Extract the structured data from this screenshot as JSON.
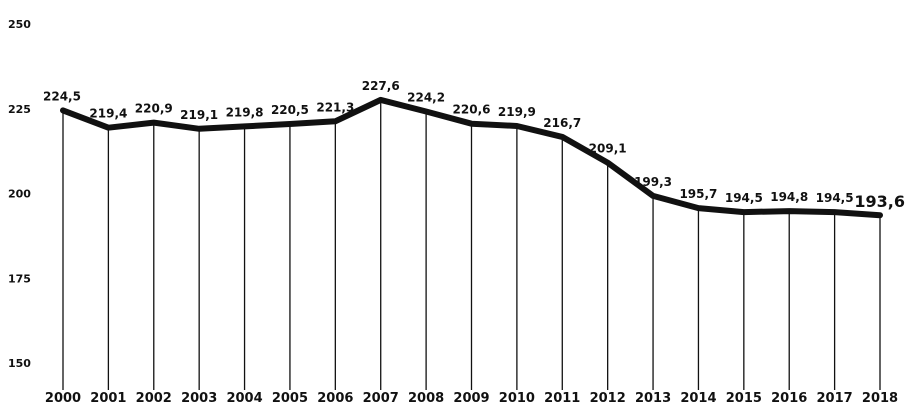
{
  "chart_data": {
    "type": "line",
    "title": "",
    "xlabel": "",
    "ylabel": "",
    "ylim": [
      150,
      250
    ],
    "yticks": [
      "250",
      "225",
      "200",
      "175",
      "150"
    ],
    "x": [
      "2000",
      "2001",
      "2002",
      "2003",
      "2004",
      "2005",
      "2006",
      "2007",
      "2008",
      "2009",
      "2010",
      "2011",
      "2012",
      "2013",
      "2014",
      "2015",
      "2016",
      "2017",
      "2018"
    ],
    "values": [
      224.5,
      219.4,
      220.9,
      219.1,
      219.8,
      220.5,
      221.3,
      227.6,
      224.2,
      220.6,
      219.9,
      216.7,
      209.1,
      199.3,
      195.7,
      194.5,
      194.8,
      194.5,
      193.6
    ],
    "labels": [
      "224,5",
      "219,4",
      "220,9",
      "219,1",
      "219,8",
      "220,5",
      "221,3",
      "227,6",
      "224,2",
      "220,6",
      "219,9",
      "216,7",
      "209,1",
      "199,3",
      "195,7",
      "194,5",
      "194,8",
      "194,5",
      "193,6"
    ],
    "grid": false,
    "line_color": "#111111",
    "background": "#ffffff"
  }
}
